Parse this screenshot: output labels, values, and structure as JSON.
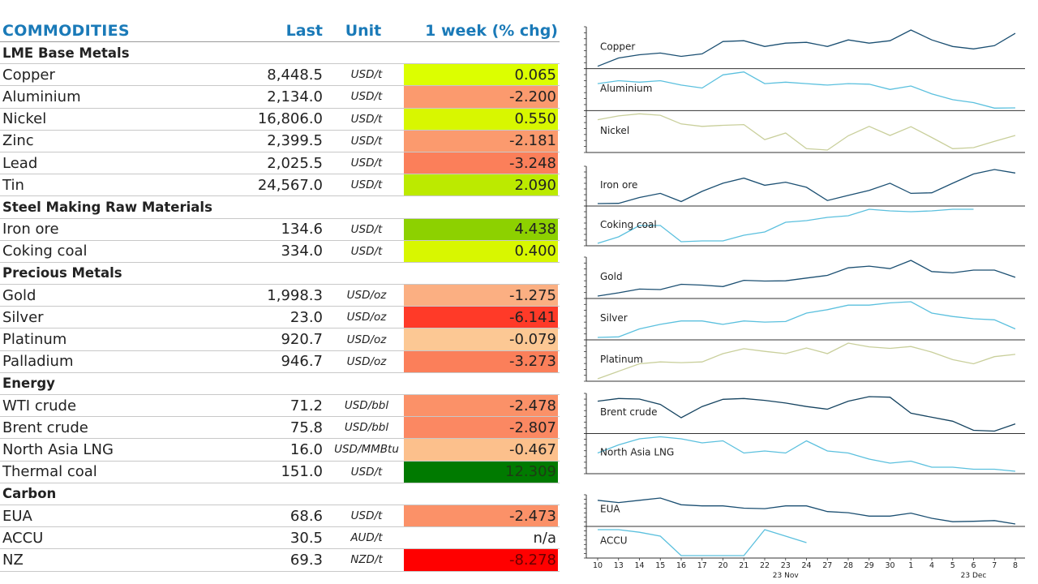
{
  "header": {
    "title": "COMMODITIES",
    "last": "Last",
    "unit": "Unit",
    "chg": "1 week (% chg)"
  },
  "sections": [
    {
      "name": "LME Base Metals",
      "rows": [
        {
          "name": "Copper",
          "last": "8,448.5",
          "unit": "USD/t",
          "chg": "0.065",
          "bg": "#dcff00",
          "fg": "#222222"
        },
        {
          "name": "Aluminium",
          "last": "2,134.0",
          "unit": "USD/t",
          "chg": "-2.200",
          "bg": "#fb9a6e",
          "fg": "#222222"
        },
        {
          "name": "Nickel",
          "last": "16,806.0",
          "unit": "USD/t",
          "chg": "0.550",
          "bg": "#d8f700",
          "fg": "#222222"
        },
        {
          "name": "Zinc",
          "last": "2,399.5",
          "unit": "USD/t",
          "chg": "-2.181",
          "bg": "#fb9a6e",
          "fg": "#222222"
        },
        {
          "name": "Lead",
          "last": "2,025.5",
          "unit": "USD/t",
          "chg": "-3.248",
          "bg": "#fb7f5a",
          "fg": "#222222"
        },
        {
          "name": "Tin",
          "last": "24,567.0",
          "unit": "USD/t",
          "chg": "2.090",
          "bg": "#bcea00",
          "fg": "#222222"
        }
      ]
    },
    {
      "name": "Steel Making Raw Materials",
      "rows": [
        {
          "name": "Iron ore",
          "last": "134.6",
          "unit": "USD/t",
          "chg": "4.438",
          "bg": "#8dd100",
          "fg": "#222222"
        },
        {
          "name": "Coking coal",
          "last": "334.0",
          "unit": "USD/t",
          "chg": "0.400",
          "bg": "#d8f700",
          "fg": "#222222"
        }
      ]
    },
    {
      "name": "Precious Metals",
      "rows": [
        {
          "name": "Gold",
          "last": "1,998.3",
          "unit": "USD/oz",
          "chg": "-1.275",
          "bg": "#fbaf82",
          "fg": "#222222"
        },
        {
          "name": "Silver",
          "last": "23.0",
          "unit": "USD/oz",
          "chg": "-6.141",
          "bg": "#ff3a28",
          "fg": "#222222"
        },
        {
          "name": "Platinum",
          "last": "920.7",
          "unit": "USD/oz",
          "chg": "-0.079",
          "bg": "#fcc894",
          "fg": "#222222"
        },
        {
          "name": "Palladium",
          "last": "946.7",
          "unit": "USD/oz",
          "chg": "-3.273",
          "bg": "#fb7f5a",
          "fg": "#222222"
        }
      ]
    },
    {
      "name": "Energy",
      "rows": [
        {
          "name": "WTI crude",
          "last": "71.2",
          "unit": "USD/bbl",
          "chg": "-2.478",
          "bg": "#fb9168",
          "fg": "#222222"
        },
        {
          "name": "Brent crude",
          "last": "75.8",
          "unit": "USD/bbl",
          "chg": "-2.807",
          "bg": "#fb8862",
          "fg": "#222222"
        },
        {
          "name": "North Asia LNG",
          "last": "16.0",
          "unit": "USD/MMBtu",
          "chg": "-0.467",
          "bg": "#fcc08c",
          "fg": "#222222"
        },
        {
          "name": "Thermal coal",
          "last": "151.0",
          "unit": "USD/t",
          "chg": "12.309",
          "bg": "#007a00",
          "fg": "#1e3c14"
        }
      ]
    },
    {
      "name": "Carbon",
      "rows": [
        {
          "name": "EUA",
          "last": "68.6",
          "unit": "USD/t",
          "chg": "-2.473",
          "bg": "#fb9168",
          "fg": "#222222"
        },
        {
          "name": "ACCU",
          "last": "30.5",
          "unit": "AUD/t",
          "chg": "n/a",
          "bg": "#ffffff",
          "fg": "#222222"
        },
        {
          "name": "NZ",
          "last": "69.3",
          "unit": "NZD/t",
          "chg": "-8.278",
          "bg": "#ff0000",
          "fg": "#6a0000"
        }
      ]
    }
  ],
  "chart_data": {
    "type": "line",
    "x": [
      "10",
      "13",
      "14",
      "15",
      "16",
      "17",
      "20",
      "21",
      "22",
      "23",
      "24",
      "27",
      "28",
      "29",
      "30",
      "1",
      "4",
      "5",
      "6",
      "7",
      "8"
    ],
    "x_month_labels": [
      {
        "at": "23",
        "label": "23 Nov"
      },
      {
        "at": "6",
        "label": "23 Dec"
      }
    ],
    "groups": [
      {
        "series": [
          {
            "name": "Copper",
            "color": "#1b4f72",
            "values": [
              8250,
              8300,
              8320,
              8330,
              8310,
              8325,
              8400,
              8405,
              8370,
              8390,
              8395,
              8370,
              8410,
              8390,
              8405,
              8470,
              8410,
              8370,
              8355,
              8375,
              8450
            ]
          },
          {
            "name": "Aluminium",
            "color": "#5bc0de",
            "values": [
              2220,
              2230,
              2225,
              2230,
              2215,
              2205,
              2250,
              2260,
              2220,
              2225,
              2220,
              2215,
              2220,
              2218,
              2200,
              2212,
              2185,
              2165,
              2155,
              2136,
              2137
            ]
          },
          {
            "name": "Nickel",
            "color": "#c9cf9b",
            "values": [
              17450,
              17560,
              17620,
              17580,
              17330,
              17260,
              17290,
              17310,
              16880,
              17070,
              16620,
              16580,
              16990,
              17260,
              17000,
              17250,
              16940,
              16620,
              16650,
              16830,
              17000
            ]
          }
        ]
      },
      {
        "series": [
          {
            "name": "Iron ore",
            "color": "#1b4f72",
            "values": [
              124.5,
              124.6,
              127.5,
              129.5,
              125.5,
              130.5,
              134.5,
              137,
              133.5,
              135,
              132.5,
              126,
              128.5,
              131,
              134.5,
              129.5,
              129.8,
              134.5,
              139,
              141.2,
              139.5
            ]
          },
          {
            "name": "Coking coal",
            "color": "#5bc0de",
            "values": [
              290,
              294,
              301,
              301,
              291,
              291.5,
              291.5,
              295,
              297,
              303,
              304,
              306,
              307,
              311,
              310,
              309.5,
              310,
              311,
              311,
              null,
              null
            ]
          }
        ]
      },
      {
        "series": [
          {
            "name": "Gold",
            "color": "#1b4f72",
            "values": [
              1930,
              1943,
              1958,
              1956,
              1977,
              1974,
              1968,
              1993,
              1990,
              1991,
              2002,
              2013,
              2043,
              2050,
              2040,
              2073,
              2028,
              2023,
              2034,
              2034,
              2005
            ]
          },
          {
            "name": "Silver",
            "color": "#5bc0de",
            "values": [
              22.15,
              22.2,
              22.9,
              23.3,
              23.6,
              23.6,
              23.3,
              23.6,
              23.5,
              23.55,
              24.3,
              24.6,
              25.0,
              25.0,
              25.2,
              25.3,
              24.3,
              24.0,
              23.8,
              23.7,
              22.9
            ]
          },
          {
            "name": "Platinum",
            "color": "#c9cf9b",
            "values": [
              855,
              875,
              895,
              900,
              898,
              900,
              922,
              935,
              928,
              922,
              937,
              922,
              950,
              940,
              936,
              941,
              926,
              906,
              895,
              914,
              920
            ]
          }
        ]
      },
      {
        "series": [
          {
            "name": "Brent crude",
            "color": "#154360",
            "values": [
              82.5,
              83.5,
              83.3,
              81.3,
              76.3,
              80.5,
              83.2,
              83.5,
              82.8,
              81.8,
              80.5,
              79.5,
              82.5,
              84.2,
              84,
              78,
              76.5,
              75,
              71.6,
              71.3,
              74
            ]
          },
          {
            "name": "North Asia LNG",
            "color": "#5bc0de",
            "values": [
              19.5,
              19.9,
              20.2,
              20.3,
              20.2,
              20,
              20.1,
              19.5,
              19.6,
              19.5,
              20.1,
              19.6,
              19.5,
              19.2,
              19.0,
              19.1,
              18.8,
              18.8,
              18.7,
              18.7,
              18.6
            ]
          }
        ]
      },
      {
        "series": [
          {
            "name": "EUA",
            "color": "#1b4f72",
            "values": [
              79.5,
              78.5,
              79.5,
              80.5,
              77.5,
              77,
              77,
              76,
              75.8,
              77,
              77,
              74.5,
              74,
              72.5,
              72.5,
              73.8,
              71.5,
              70,
              70.2,
              70.5,
              69
            ]
          },
          {
            "name": "ACCU",
            "color": "#5bc0de",
            "values": [
              33,
              33,
              32.8,
              32.5,
              31,
              31,
              31,
              31,
              33,
              32.5,
              32,
              null,
              null,
              null,
              null,
              null,
              null,
              null,
              null,
              null,
              null
            ]
          }
        ]
      }
    ]
  }
}
